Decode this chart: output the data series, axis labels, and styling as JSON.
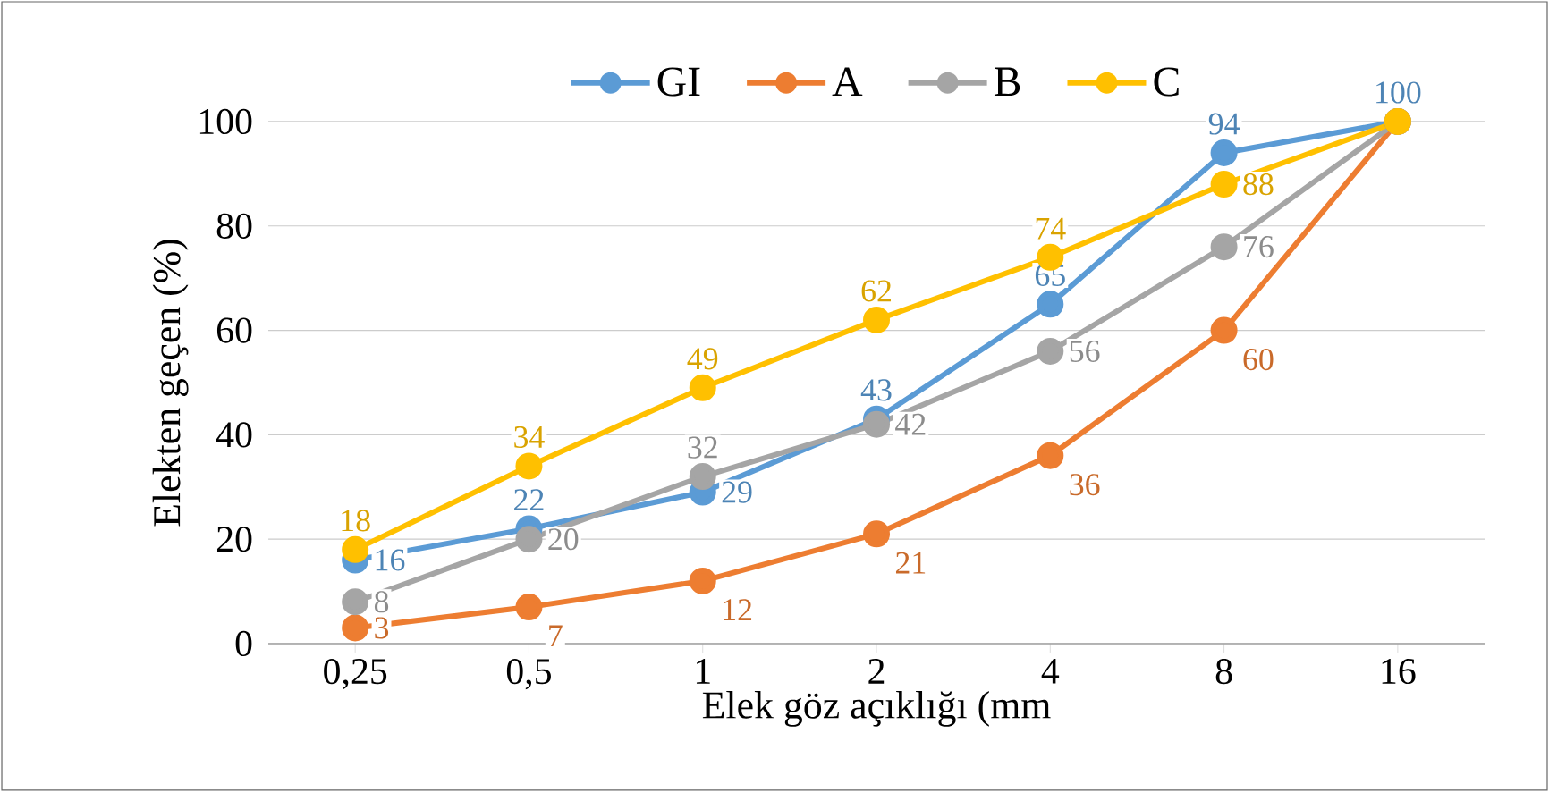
{
  "chart_data": {
    "type": "line",
    "xlabel": "Elek göz açıklığı (mm",
    "ylabel": "Elekten geçen (%)",
    "categories": [
      "0,25",
      "0,5",
      "1",
      "2",
      "4",
      "8",
      "16"
    ],
    "series": [
      {
        "name": "GI",
        "color": "#5b9bd5",
        "values": [
          16,
          22,
          29,
          43,
          65,
          94,
          100
        ],
        "value_labels": [
          "16",
          "22",
          "29",
          "43",
          "65",
          "94",
          "100"
        ]
      },
      {
        "name": "A",
        "color": "#ed7d31",
        "values": [
          3,
          7,
          12,
          21,
          36,
          60,
          100
        ],
        "value_labels": [
          "3",
          "7",
          "12",
          "21",
          "36",
          "60",
          null
        ]
      },
      {
        "name": "B",
        "color": "#a5a5a5",
        "values": [
          8,
          20,
          32,
          42,
          56,
          76,
          100
        ],
        "value_labels": [
          "8",
          "20",
          "32",
          "42",
          "56",
          "76",
          null
        ]
      },
      {
        "name": "C",
        "color": "#ffc000",
        "values": [
          18,
          34,
          49,
          62,
          74,
          88,
          100
        ],
        "value_labels": [
          "18",
          "34",
          "49",
          "62",
          "74",
          "88",
          null
        ]
      }
    ],
    "ylim": [
      0,
      100
    ],
    "yticks": [
      0,
      20,
      40,
      60,
      80,
      100
    ],
    "grid": "y",
    "legend": "top",
    "marker": "circle",
    "line_style": "solid"
  }
}
